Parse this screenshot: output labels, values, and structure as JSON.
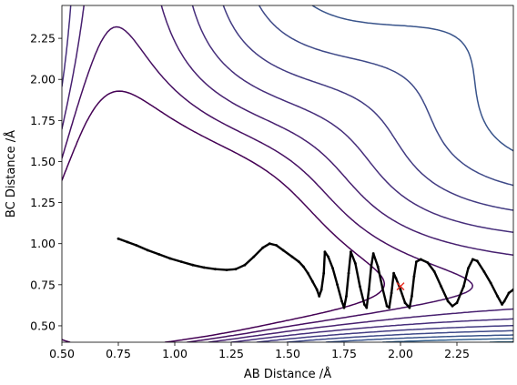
{
  "chart_data": {
    "type": "contour",
    "title": "",
    "xlabel": "AB Distance /Å",
    "ylabel": "BC Distance /Å",
    "xlim": [
      0.5,
      2.5
    ],
    "ylim": [
      0.4,
      2.45
    ],
    "xticks": [
      "0.50",
      "0.75",
      "1.00",
      "1.25",
      "1.50",
      "1.75",
      "2.00",
      "2.25"
    ],
    "yticks": [
      "0.50",
      "0.75",
      "1.00",
      "1.25",
      "1.50",
      "1.75",
      "2.00",
      "2.25"
    ],
    "grid": false,
    "colormap": "viridis",
    "contour_levels": 24,
    "trajectory_color": "#000000",
    "marker": {
      "x": 2.0,
      "y": 0.74,
      "symbol": "x",
      "color": "#e8291c"
    },
    "trajectory": [
      [
        0.75,
        1.03
      ],
      [
        0.79,
        1.01
      ],
      [
        0.83,
        0.99
      ],
      [
        0.88,
        0.96
      ],
      [
        0.93,
        0.935
      ],
      [
        0.98,
        0.91
      ],
      [
        1.03,
        0.89
      ],
      [
        1.08,
        0.87
      ],
      [
        1.13,
        0.855
      ],
      [
        1.18,
        0.845
      ],
      [
        1.23,
        0.84
      ],
      [
        1.27,
        0.845
      ],
      [
        1.31,
        0.87
      ],
      [
        1.35,
        0.92
      ],
      [
        1.39,
        0.975
      ],
      [
        1.42,
        1.0
      ],
      [
        1.45,
        0.99
      ],
      [
        1.48,
        0.96
      ],
      [
        1.52,
        0.92
      ],
      [
        1.55,
        0.89
      ],
      [
        1.57,
        0.86
      ],
      [
        1.59,
        0.82
      ],
      [
        1.61,
        0.77
      ],
      [
        1.63,
        0.72
      ],
      [
        1.64,
        0.68
      ],
      [
        1.65,
        0.72
      ],
      [
        1.66,
        0.82
      ],
      [
        1.665,
        0.95
      ],
      [
        1.68,
        0.92
      ],
      [
        1.7,
        0.85
      ],
      [
        1.72,
        0.75
      ],
      [
        1.74,
        0.65
      ],
      [
        1.75,
        0.61
      ],
      [
        1.76,
        0.68
      ],
      [
        1.77,
        0.82
      ],
      [
        1.78,
        0.95
      ],
      [
        1.8,
        0.88
      ],
      [
        1.82,
        0.74
      ],
      [
        1.84,
        0.63
      ],
      [
        1.85,
        0.61
      ],
      [
        1.86,
        0.72
      ],
      [
        1.87,
        0.86
      ],
      [
        1.88,
        0.94
      ],
      [
        1.9,
        0.86
      ],
      [
        1.92,
        0.73
      ],
      [
        1.94,
        0.62
      ],
      [
        1.95,
        0.61
      ],
      [
        1.96,
        0.7
      ],
      [
        1.97,
        0.82
      ],
      [
        1.98,
        0.79
      ],
      [
        2.0,
        0.72
      ],
      [
        2.02,
        0.64
      ],
      [
        2.04,
        0.61
      ],
      [
        2.05,
        0.68
      ],
      [
        2.06,
        0.8
      ],
      [
        2.07,
        0.89
      ],
      [
        2.09,
        0.905
      ],
      [
        2.12,
        0.885
      ],
      [
        2.15,
        0.83
      ],
      [
        2.18,
        0.74
      ],
      [
        2.21,
        0.65
      ],
      [
        2.23,
        0.62
      ],
      [
        2.25,
        0.64
      ],
      [
        2.28,
        0.74
      ],
      [
        2.3,
        0.85
      ],
      [
        2.32,
        0.905
      ],
      [
        2.34,
        0.895
      ],
      [
        2.37,
        0.83
      ],
      [
        2.4,
        0.76
      ],
      [
        2.43,
        0.68
      ],
      [
        2.45,
        0.63
      ],
      [
        2.46,
        0.65
      ],
      [
        2.48,
        0.7
      ],
      [
        2.5,
        0.72
      ]
    ]
  }
}
